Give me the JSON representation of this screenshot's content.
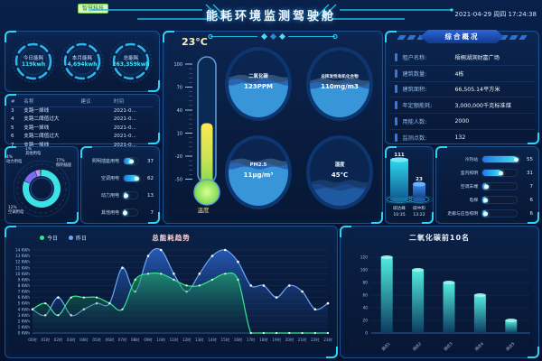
{
  "header": {
    "badge": "智慧科技",
    "title": "能耗环境监测驾驶舱",
    "datetime": "2021-04-29 周四 17:24:38"
  },
  "energy_rings": {
    "items": [
      {
        "label": "今日能耗",
        "value": "119kwh"
      },
      {
        "label": "本月能耗",
        "value": "4,694kwh"
      },
      {
        "label": "总能耗",
        "value": "263,359kwh"
      }
    ]
  },
  "alarm_table": {
    "headers": [
      "#",
      "名称",
      "建议",
      "时间"
    ],
    "rows": [
      [
        "3",
        "支路一掉线",
        "",
        "2021-0..."
      ],
      [
        "4",
        "支路二阈值过大",
        "",
        "2021-0..."
      ],
      [
        "5",
        "支路一掉线",
        "",
        "2021-0..."
      ],
      [
        "6",
        "支路二阈值过大",
        "",
        "2021-0..."
      ],
      [
        "7",
        "支路一掉线",
        "",
        "2021-0..."
      ]
    ]
  },
  "thermometer": {
    "value": "23°C",
    "label": "温度",
    "ticks": [
      100,
      70,
      40,
      10,
      -20,
      -50
    ],
    "current": 23,
    "min": -50,
    "max": 100
  },
  "gauges": [
    {
      "title": "二氧化碳",
      "value": "123PPM",
      "level": 0.55
    },
    {
      "title": "总挥发性有机化合物",
      "value": "110mg/m3",
      "level": 0.5
    },
    {
      "title": "PM2.5",
      "value": "11μg/m³",
      "level": 0.62
    },
    {
      "title": "湿度",
      "value": "45℃",
      "level": 0.3
    }
  ],
  "overview": {
    "title": "综合概况",
    "rows": [
      {
        "label": "租户名称:",
        "value": "梧桐湖滨财富广场"
      },
      {
        "label": "建筑数量:",
        "value": "4栋"
      },
      {
        "label": "建筑面积:",
        "value": "66,505.14平方米"
      },
      {
        "label": "年定额能耗:",
        "value": "3,000,000千克标准煤"
      },
      {
        "label": "用能人数:",
        "value": "2000"
      },
      {
        "label": "监测点数:",
        "value": "132"
      }
    ]
  },
  "cylinders": {
    "items": [
      {
        "value": "111",
        "label": "碳达峰",
        "time": "10:35"
      },
      {
        "value": "23",
        "label": "碳中和",
        "time": "13:22"
      }
    ]
  },
  "chart_data": [
    {
      "id": "energy-pie",
      "type": "pie",
      "slices": [
        {
          "label": "照明插座",
          "pct": 77,
          "color": "#3be2e6"
        },
        {
          "label": "空调用电",
          "pct": 12,
          "color": "#7d6bf0"
        },
        {
          "label": "动力用电",
          "pct": 4,
          "color": "#b49af7"
        },
        {
          "label": "其他用电",
          "pct": 1,
          "color": "#f7d848"
        }
      ]
    },
    {
      "id": "usage-bars",
      "type": "bar",
      "orientation": "horizontal",
      "categories": [
        "照明插座用电",
        "空调用电",
        "动力用电",
        "其他用电"
      ],
      "values": [
        37,
        62,
        13,
        7
      ],
      "max": 62
    },
    {
      "id": "device-bars",
      "type": "bar",
      "orientation": "horizontal",
      "categories": [
        "冷热站",
        "室内照明",
        "空调末端",
        "电梯",
        "走廊与应急照明"
      ],
      "values": [
        55,
        31,
        7,
        6,
        6
      ],
      "max": 55
    },
    {
      "id": "energy-trend",
      "type": "area",
      "title": "总能耗趋势",
      "x": [
        "00时",
        "01时",
        "02时",
        "03时",
        "04时",
        "05时",
        "06时",
        "07时",
        "08时",
        "09时",
        "10时",
        "11时",
        "12时",
        "13时",
        "14时",
        "15时",
        "16时",
        "17时",
        "18时",
        "19时",
        "20时",
        "21时",
        "22时",
        "23时"
      ],
      "ylim": [
        0,
        14
      ],
      "y_unit": "KWh",
      "grid": true,
      "legend_position": "top",
      "series": [
        {
          "name": "今日",
          "color": "#35e58f",
          "values": [
            4,
            5,
            3,
            6,
            6,
            6,
            5,
            4,
            9,
            10,
            10,
            9,
            8,
            8,
            9,
            10,
            9,
            0,
            0,
            0,
            0,
            0,
            0,
            0
          ]
        },
        {
          "name": "昨日",
          "color": "#6fa6f5",
          "values": [
            4,
            3,
            6,
            3,
            4,
            5,
            5,
            11,
            7,
            13,
            14,
            10,
            7,
            10,
            13,
            14,
            12,
            8,
            8,
            6,
            8,
            7,
            4,
            5
          ]
        }
      ]
    },
    {
      "id": "co2-top",
      "type": "bar",
      "title": "二氧化碳前10名",
      "categories": [
        "测点1",
        "测点2",
        "测点3",
        "测点4",
        "测点5"
      ],
      "values": [
        120,
        100,
        80,
        60,
        20
      ],
      "ylim": [
        0,
        120
      ],
      "yticks": [
        0,
        20,
        40,
        60,
        80,
        100,
        120
      ]
    }
  ]
}
